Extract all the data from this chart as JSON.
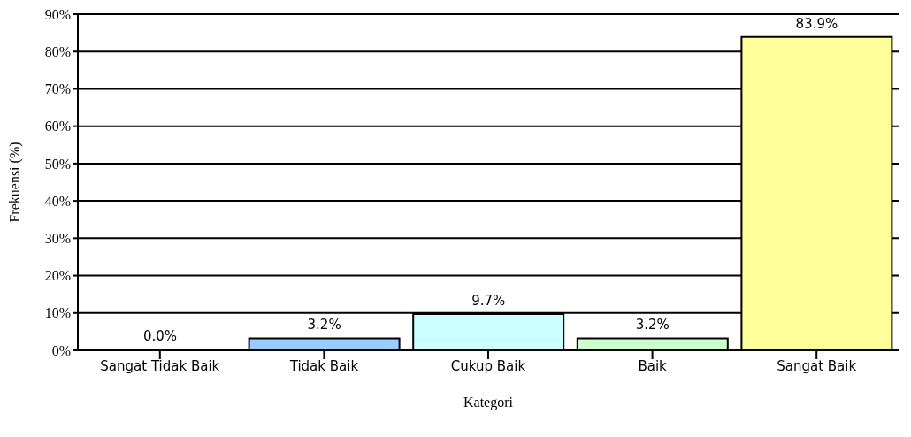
{
  "chart_data": {
    "type": "bar",
    "xlabel": "Kategori",
    "ylabel": "Frekuensi (%)",
    "categories": [
      "Sangat Tidak Baik",
      "Tidak Baik",
      "Cukup Baik",
      "Baik",
      "Sangat Baik"
    ],
    "values": [
      0.0,
      3.2,
      9.7,
      3.2,
      83.9
    ],
    "colors": [
      "#9999ff",
      "#99ccff",
      "#ccffff",
      "#ccffcc",
      "#ffff99"
    ],
    "value_labels": [
      "0.0%",
      "3.2%",
      "9.7%",
      "3.2%",
      "83.9%"
    ],
    "ylim": [
      0,
      90
    ],
    "yticks": [
      {
        "value": 0,
        "label": "0%"
      },
      {
        "value": 10,
        "label": "10%"
      },
      {
        "value": 20,
        "label": "20%"
      },
      {
        "value": 30,
        "label": "30%"
      },
      {
        "value": 40,
        "label": "40%"
      },
      {
        "value": 50,
        "label": "50%"
      },
      {
        "value": 60,
        "label": "60%"
      },
      {
        "value": 70,
        "label": "70%"
      },
      {
        "value": 80,
        "label": "80%"
      },
      {
        "value": 90,
        "label": "90%"
      }
    ],
    "grid": "y",
    "legend": false
  }
}
